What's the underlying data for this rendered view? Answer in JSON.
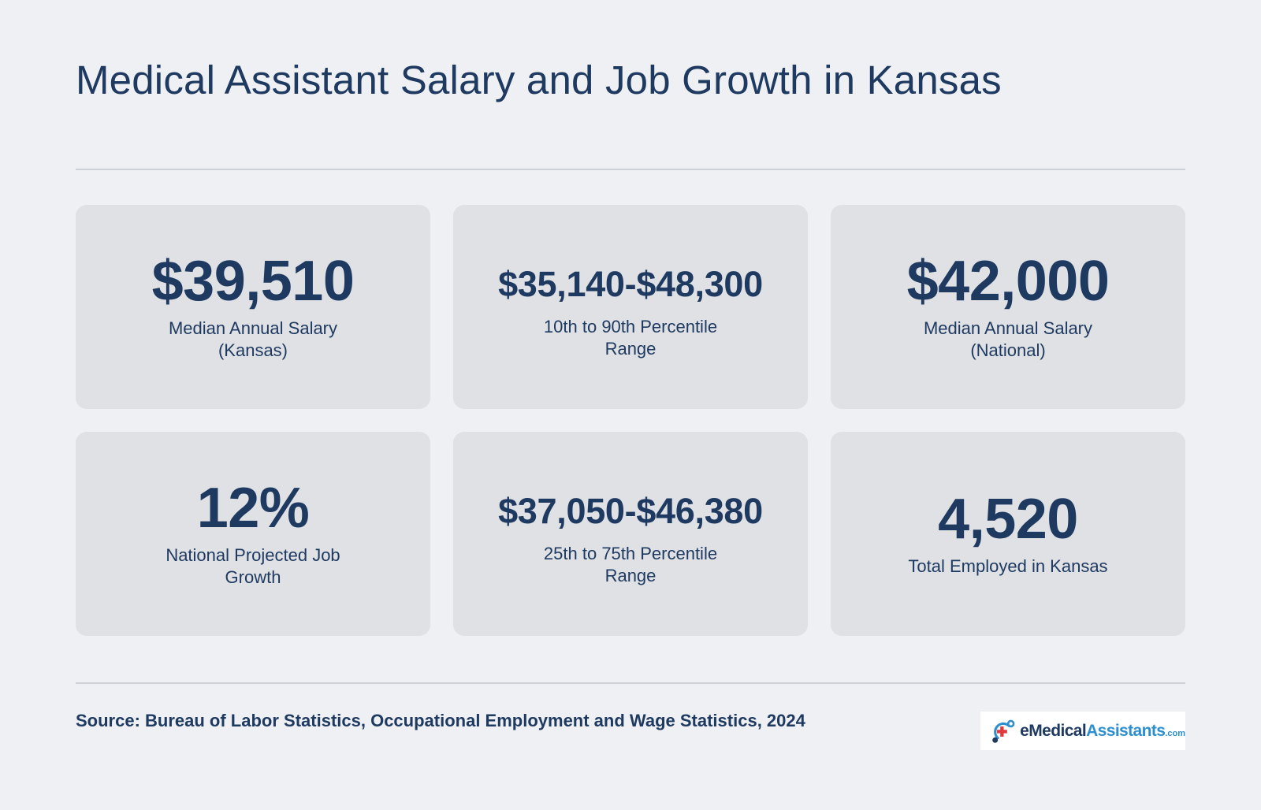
{
  "title": "Medical Assistant Salary and Job Growth in Kansas",
  "stats": [
    {
      "value": "$39,510",
      "label": "Median Annual Salary (Kansas)"
    },
    {
      "value": "$35,140-$48,300",
      "label": "10th to 90th Percentile Range"
    },
    {
      "value": "$42,000",
      "label": "Median Annual Salary (National)"
    },
    {
      "value": "12%",
      "label": "National Projected Job Growth"
    },
    {
      "value": "$37,050-$46,380",
      "label": "25th to 75th Percentile Range"
    },
    {
      "value": "4,520",
      "label": "Total Employed in Kansas"
    }
  ],
  "source": "Source: Bureau of Labor Statistics, Occupational Employment and Wage Statistics, 2024",
  "logo": {
    "prefix": "e",
    "medical": "Medical",
    "assistants": "Assistants",
    "suffix": ".com"
  },
  "colors": {
    "background": "#eff0f4",
    "card": "#dfe1e5",
    "text": "#1f3a60",
    "brand_blue": "#2d8fd0",
    "brand_red": "#e0393e"
  }
}
